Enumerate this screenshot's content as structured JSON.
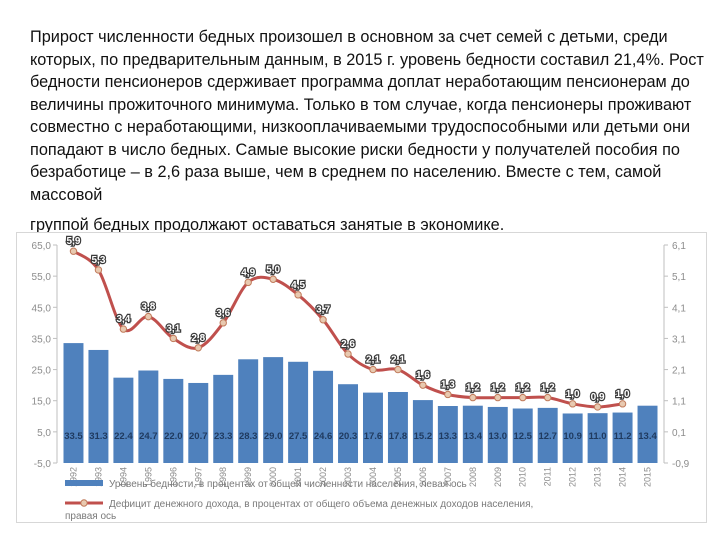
{
  "text": {
    "paragraph": "Прирост численности бедных произошел в основном за счет семей с детьми, среди которых, по предварительным данным, в 2015 г. уровень бедности составил 21,4%. Рост бедности пенсионеров сдерживает программа доплат неработающим пенсионерам до величины прожиточного минимума. Только в том случае, когда пенсионеры проживают совместно с неработающими, низкооплачиваемыми трудоспособными или детьми они попадают в число бедных. Самые высокие риски бедности у получателей пособия по безработице – в 2,6 раза выше, чем в среднем по населению. Вместе с тем, самой массовой",
    "last_line": "группой бедных продолжают оставаться занятые в экономике."
  },
  "chart_data": {
    "type": "bar",
    "categories": [
      "1992",
      "1993",
      "1994",
      "1995",
      "1996",
      "1997",
      "1998",
      "1999",
      "2000",
      "2001",
      "2002",
      "2003",
      "2004",
      "2005",
      "2006",
      "2007",
      "2008",
      "2009",
      "2010",
      "2011",
      "2012",
      "2013",
      "2014",
      "2015"
    ],
    "series": [
      {
        "name": "Уровень бедности, в процентах от общей численности населения, левая ось",
        "type": "bar",
        "axis": "left",
        "values": [
          33.5,
          31.3,
          22.4,
          24.7,
          22.0,
          20.7,
          23.3,
          28.3,
          29.0,
          27.5,
          24.6,
          20.3,
          17.6,
          17.8,
          15.2,
          13.3,
          13.4,
          13.0,
          12.5,
          12.7,
          10.9,
          11.0,
          11.2,
          13.4
        ],
        "labels": [
          "33.5",
          "31.3",
          "22.4",
          "24.7",
          "22.0",
          "20.7",
          "23.3",
          "28.3",
          "29.0",
          "27.5",
          "24.6",
          "20.3",
          "17.6",
          "17.8",
          "15.2",
          "13.3",
          "13.4",
          "13.0",
          "12.5",
          "12.7",
          "10.9",
          "11.0",
          "11.2",
          "13.4"
        ]
      },
      {
        "name": "Дефицит денежного дохода, в процентах от общего объема денежных доходов населения, правая ось",
        "type": "line",
        "axis": "right",
        "values": [
          5.9,
          5.3,
          3.4,
          3.8,
          3.1,
          2.8,
          3.6,
          4.9,
          5.0,
          4.5,
          3.7,
          2.6,
          2.1,
          2.1,
          1.6,
          1.3,
          1.2,
          1.2,
          1.2,
          1.2,
          1.0,
          0.9,
          1.0,
          null
        ],
        "labels": [
          "5,9",
          "5,3",
          "3,4",
          "3,8",
          "3,1",
          "2,8",
          "3,6",
          "4,9",
          "5,0",
          "4,5",
          "3,7",
          "2,6",
          "2,1",
          "2,1",
          "1,6",
          "1,3",
          "1,2",
          "1,2",
          "1,2",
          "1,2",
          "1,0",
          "0,9",
          "1,0",
          ""
        ]
      }
    ],
    "left_axis": {
      "ylim": [
        -5,
        65
      ],
      "ticks": [
        "-5,0",
        "5,0",
        "15,0",
        "25,0",
        "35,0",
        "45,0",
        "55,0",
        "65,0"
      ]
    },
    "right_axis": {
      "ylim": [
        -0.9,
        6.1
      ],
      "ticks": [
        "-0,9",
        "0,1",
        "1,1",
        "2,1",
        "3,1",
        "4,1",
        "5,1",
        "6,1"
      ]
    },
    "legend_position": "bottom",
    "colors": {
      "bars": "#4f81bd",
      "line": "#c0504d",
      "markers": "#e8c9b0"
    }
  }
}
